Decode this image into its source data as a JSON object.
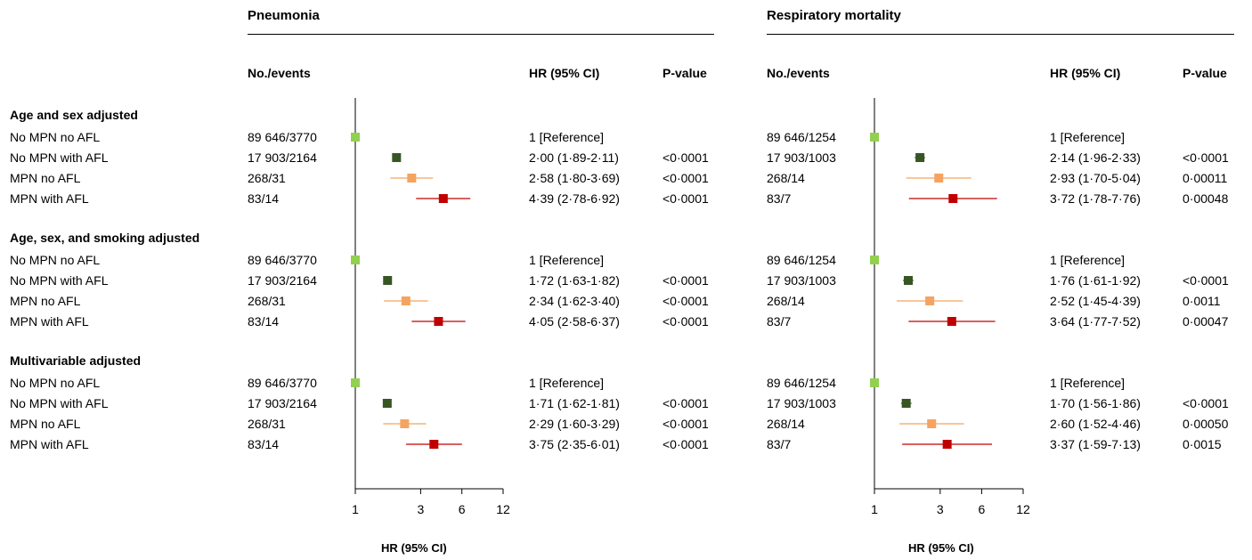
{
  "panels": [
    {
      "title": "Pneumonia",
      "col_events": "No./events",
      "col_hr": "HR (95% CI)",
      "col_p": "P-value",
      "xlabel": "HR (95% CI)"
    },
    {
      "title": "Respiratory mortality",
      "col_events": "No./events",
      "col_hr": "HR (95% CI)",
      "col_p": "P-value",
      "xlabel": "HR (95% CI)"
    }
  ],
  "groups": [
    {
      "label": "Age and sex adjusted"
    },
    {
      "label": "Age, sex, and smoking adjusted"
    },
    {
      "label": "Multivariable adjusted"
    }
  ],
  "row_labels": [
    "No MPN no AFL",
    "No MPN with AFL",
    "MPN no AFL",
    "MPN with AFL"
  ],
  "colors": {
    "No MPN no AFL": "#92d050",
    "No MPN with AFL": "#375623",
    "MPN no AFL": "#f4a460",
    "MPN with AFL": "#c00000"
  },
  "chart_data": [
    {
      "type": "forest",
      "title": "Pneumonia",
      "xlabel": "HR (95% CI)",
      "xscale": "log",
      "xticks": [
        1,
        3,
        6,
        12
      ],
      "xlim": [
        1,
        12
      ],
      "rows": [
        {
          "group": 0,
          "label": "No MPN no AFL",
          "events": "89 646/3770",
          "hr": 1,
          "lo": 1,
          "hi": 1,
          "hr_text": "1 [Reference]",
          "p": ""
        },
        {
          "group": 0,
          "label": "No MPN with AFL",
          "events": "17 903/2164",
          "hr": 2.0,
          "lo": 1.89,
          "hi": 2.11,
          "hr_text": "2·00 (1·89-2·11)",
          "p": "<0·0001"
        },
        {
          "group": 0,
          "label": "MPN no AFL",
          "events": "268/31",
          "hr": 2.58,
          "lo": 1.8,
          "hi": 3.69,
          "hr_text": "2·58 (1·80-3·69)",
          "p": "<0·0001"
        },
        {
          "group": 0,
          "label": "MPN with AFL",
          "events": "83/14",
          "hr": 4.39,
          "lo": 2.78,
          "hi": 6.92,
          "hr_text": "4·39 (2·78-6·92)",
          "p": "<0·0001"
        },
        {
          "group": 1,
          "label": "No MPN no AFL",
          "events": "89 646/3770",
          "hr": 1,
          "lo": 1,
          "hi": 1,
          "hr_text": "1 [Reference]",
          "p": ""
        },
        {
          "group": 1,
          "label": "No MPN with AFL",
          "events": "17 903/2164",
          "hr": 1.72,
          "lo": 1.63,
          "hi": 1.82,
          "hr_text": "1·72 (1·63-1·82)",
          "p": "<0·0001"
        },
        {
          "group": 1,
          "label": "MPN no AFL",
          "events": "268/31",
          "hr": 2.34,
          "lo": 1.62,
          "hi": 3.4,
          "hr_text": "2·34 (1·62-3·40)",
          "p": "<0·0001"
        },
        {
          "group": 1,
          "label": "MPN with AFL",
          "events": "83/14",
          "hr": 4.05,
          "lo": 2.58,
          "hi": 6.37,
          "hr_text": "4·05 (2·58-6·37)",
          "p": "<0·0001"
        },
        {
          "group": 2,
          "label": "No MPN no AFL",
          "events": "89 646/3770",
          "hr": 1,
          "lo": 1,
          "hi": 1,
          "hr_text": "1 [Reference]",
          "p": ""
        },
        {
          "group": 2,
          "label": "No MPN with AFL",
          "events": "17 903/2164",
          "hr": 1.71,
          "lo": 1.62,
          "hi": 1.81,
          "hr_text": "1·71 (1·62-1·81)",
          "p": "<0·0001"
        },
        {
          "group": 2,
          "label": "MPN no AFL",
          "events": "268/31",
          "hr": 2.29,
          "lo": 1.6,
          "hi": 3.29,
          "hr_text": "2·29 (1·60-3·29)",
          "p": "<0·0001"
        },
        {
          "group": 2,
          "label": "MPN with AFL",
          "events": "83/14",
          "hr": 3.75,
          "lo": 2.35,
          "hi": 6.01,
          "hr_text": "3·75 (2·35-6·01)",
          "p": "<0·0001"
        }
      ]
    },
    {
      "type": "forest",
      "title": "Respiratory mortality",
      "xlabel": "HR (95% CI)",
      "xscale": "log",
      "xticks": [
        1,
        3,
        6,
        12
      ],
      "xlim": [
        1,
        12
      ],
      "rows": [
        {
          "group": 0,
          "label": "No MPN no AFL",
          "events": "89 646/1254",
          "hr": 1,
          "lo": 1,
          "hi": 1,
          "hr_text": "1 [Reference]",
          "p": ""
        },
        {
          "group": 0,
          "label": "No MPN with AFL",
          "events": "17 903/1003",
          "hr": 2.14,
          "lo": 1.96,
          "hi": 2.33,
          "hr_text": "2·14 (1·96-2·33)",
          "p": "<0·0001"
        },
        {
          "group": 0,
          "label": "MPN no AFL",
          "events": "268/14",
          "hr": 2.93,
          "lo": 1.7,
          "hi": 5.04,
          "hr_text": "2·93 (1·70-5·04)",
          "p": "0·00011"
        },
        {
          "group": 0,
          "label": "MPN with AFL",
          "events": "83/7",
          "hr": 3.72,
          "lo": 1.78,
          "hi": 7.76,
          "hr_text": "3·72 (1·78-7·76)",
          "p": "0·00048"
        },
        {
          "group": 1,
          "label": "No MPN no AFL",
          "events": "89 646/1254",
          "hr": 1,
          "lo": 1,
          "hi": 1,
          "hr_text": "1 [Reference]",
          "p": ""
        },
        {
          "group": 1,
          "label": "No MPN with AFL",
          "events": "17 903/1003",
          "hr": 1.76,
          "lo": 1.61,
          "hi": 1.92,
          "hr_text": "1·76 (1·61-1·92)",
          "p": "<0·0001"
        },
        {
          "group": 1,
          "label": "MPN no AFL",
          "events": "268/14",
          "hr": 2.52,
          "lo": 1.45,
          "hi": 4.39,
          "hr_text": "2·52 (1·45-4·39)",
          "p": "0·0011"
        },
        {
          "group": 1,
          "label": "MPN with AFL",
          "events": "83/7",
          "hr": 3.64,
          "lo": 1.77,
          "hi": 7.52,
          "hr_text": "3·64 (1·77-7·52)",
          "p": "0·00047"
        },
        {
          "group": 2,
          "label": "No MPN no AFL",
          "events": "89 646/1254",
          "hr": 1,
          "lo": 1,
          "hi": 1,
          "hr_text": "1 [Reference]",
          "p": ""
        },
        {
          "group": 2,
          "label": "No MPN with AFL",
          "events": "17 903/1003",
          "hr": 1.7,
          "lo": 1.56,
          "hi": 1.86,
          "hr_text": "1·70 (1·56-1·86)",
          "p": "<0·0001"
        },
        {
          "group": 2,
          "label": "MPN no AFL",
          "events": "268/14",
          "hr": 2.6,
          "lo": 1.52,
          "hi": 4.46,
          "hr_text": "2·60 (1·52-4·46)",
          "p": "0·00050"
        },
        {
          "group": 2,
          "label": "MPN with AFL",
          "events": "83/7",
          "hr": 3.37,
          "lo": 1.59,
          "hi": 7.13,
          "hr_text": "3·37 (1·59-7·13)",
          "p": "0·0015"
        }
      ]
    }
  ]
}
